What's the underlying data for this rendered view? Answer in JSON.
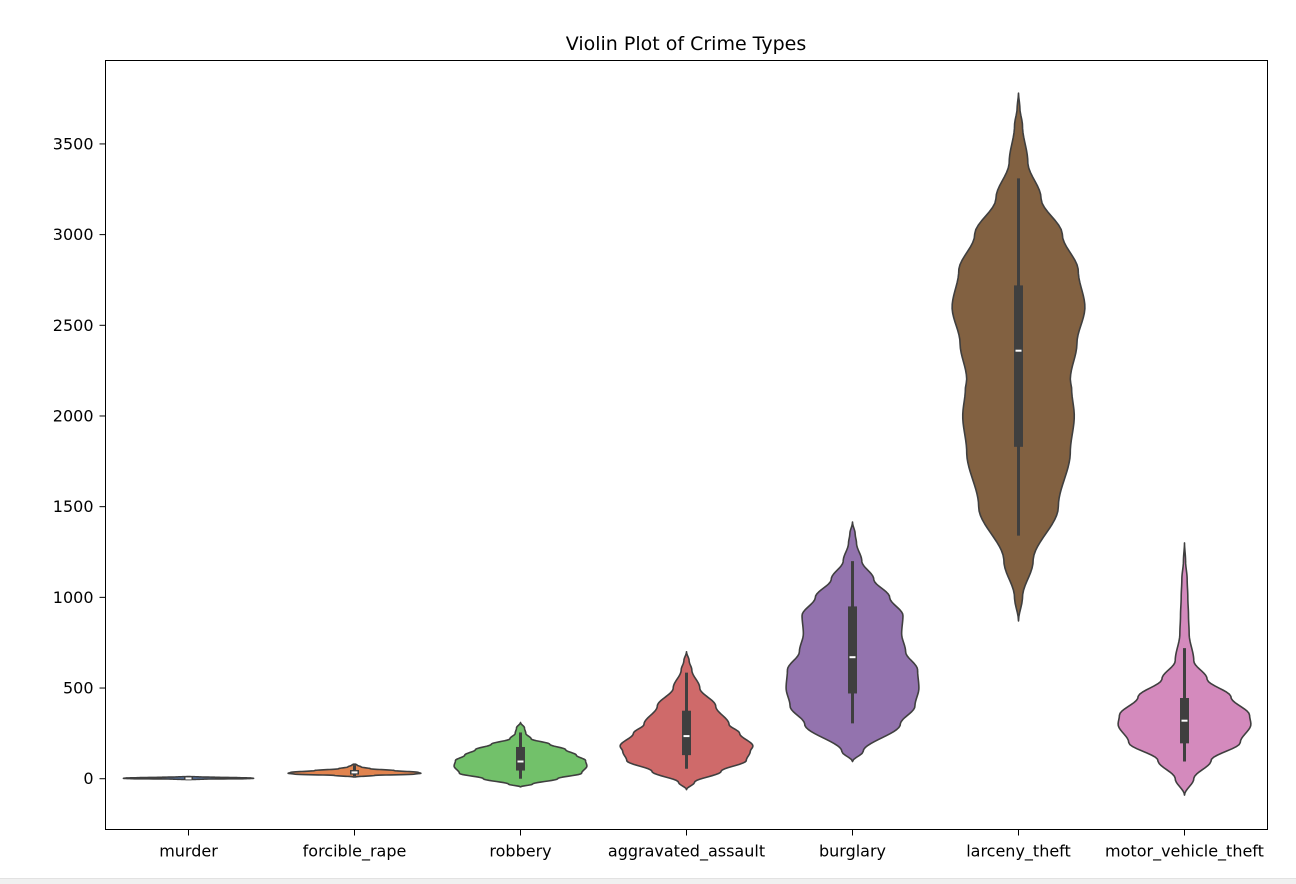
{
  "chart_data": {
    "type": "violin",
    "title": "Violin Plot of Crime Types",
    "xlabel": "",
    "ylabel": "",
    "ylim": [
      -280,
      3960
    ],
    "yticks": [
      0,
      500,
      1000,
      1500,
      2000,
      2500,
      3000,
      3500
    ],
    "grid": false,
    "categories": [
      "murder",
      "forcible_rape",
      "robbery",
      "aggravated_assault",
      "burglary",
      "larceny_theft",
      "motor_vehicle_theft"
    ],
    "violins": [
      {
        "category": "murder",
        "color": "#5a7fb7",
        "ymin": -5,
        "ymax": 12,
        "profile": [
          [
            -5,
            0.01
          ],
          [
            -2,
            0.12
          ],
          [
            0,
            0.43
          ],
          [
            2,
            0.49
          ],
          [
            4,
            0.47
          ],
          [
            6,
            0.37
          ],
          [
            8,
            0.2
          ],
          [
            10,
            0.08
          ],
          [
            12,
            0.01
          ]
        ],
        "box": {
          "whisker_low": -5,
          "q1": -3,
          "median": 1.5,
          "q3": 7,
          "whisker_high": 12
        }
      },
      {
        "category": "forcible_rape",
        "color": "#e1844f",
        "ymin": 10,
        "ymax": 80,
        "profile": [
          [
            10,
            0.01
          ],
          [
            18,
            0.15
          ],
          [
            25,
            0.45
          ],
          [
            30,
            0.5
          ],
          [
            35,
            0.48
          ],
          [
            45,
            0.3
          ],
          [
            55,
            0.12
          ],
          [
            65,
            0.05
          ],
          [
            75,
            0.02
          ],
          [
            80,
            0.01
          ]
        ],
        "box": {
          "whisker_low": 15,
          "q1": 23,
          "median": 35,
          "q3": 48,
          "whisker_high": 75
        }
      },
      {
        "category": "robbery",
        "color": "#72c16a",
        "ymin": -45,
        "ymax": 310,
        "profile": [
          [
            -45,
            0.0
          ],
          [
            -30,
            0.09
          ],
          [
            0,
            0.28
          ],
          [
            30,
            0.46
          ],
          [
            70,
            0.5
          ],
          [
            100,
            0.49
          ],
          [
            130,
            0.42
          ],
          [
            160,
            0.34
          ],
          [
            190,
            0.22
          ],
          [
            220,
            0.08
          ],
          [
            250,
            0.04
          ],
          [
            280,
            0.03
          ],
          [
            310,
            0.0
          ]
        ],
        "box": {
          "whisker_low": 0,
          "q1": 45,
          "median": 95,
          "q3": 175,
          "whisker_high": 255
        }
      },
      {
        "category": "aggravated_assault",
        "color": "#cf6a6a",
        "ymin": -60,
        "ymax": 700,
        "profile": [
          [
            -60,
            0.0
          ],
          [
            -20,
            0.06
          ],
          [
            40,
            0.26
          ],
          [
            100,
            0.45
          ],
          [
            150,
            0.48
          ],
          [
            180,
            0.5
          ],
          [
            250,
            0.4
          ],
          [
            300,
            0.32
          ],
          [
            400,
            0.22
          ],
          [
            500,
            0.1
          ],
          [
            600,
            0.04
          ],
          [
            650,
            0.02
          ],
          [
            700,
            0.0
          ]
        ],
        "box": {
          "whisker_low": 55,
          "q1": 130,
          "median": 235,
          "q3": 375,
          "whisker_high": 585
        }
      },
      {
        "category": "burglary",
        "color": "#9373ae",
        "ymin": 95,
        "ymax": 1415,
        "profile": [
          [
            95,
            0.0
          ],
          [
            150,
            0.08
          ],
          [
            300,
            0.36
          ],
          [
            400,
            0.47
          ],
          [
            500,
            0.5
          ],
          [
            600,
            0.49
          ],
          [
            700,
            0.4
          ],
          [
            800,
            0.37
          ],
          [
            900,
            0.38
          ],
          [
            1000,
            0.28
          ],
          [
            1100,
            0.16
          ],
          [
            1200,
            0.07
          ],
          [
            1300,
            0.03
          ],
          [
            1350,
            0.02
          ],
          [
            1415,
            0.0
          ]
        ],
        "box": {
          "whisker_low": 305,
          "q1": 470,
          "median": 670,
          "q3": 950,
          "whisker_high": 1200
        }
      },
      {
        "category": "larceny_theft",
        "color": "#826141",
        "ymin": 870,
        "ymax": 3780,
        "profile": [
          [
            870,
            0.0
          ],
          [
            1000,
            0.03
          ],
          [
            1200,
            0.11
          ],
          [
            1500,
            0.3
          ],
          [
            1800,
            0.39
          ],
          [
            2000,
            0.42
          ],
          [
            2150,
            0.4
          ],
          [
            2200,
            0.39
          ],
          [
            2400,
            0.44
          ],
          [
            2600,
            0.5
          ],
          [
            2800,
            0.45
          ],
          [
            3000,
            0.33
          ],
          [
            3200,
            0.17
          ],
          [
            3400,
            0.07
          ],
          [
            3600,
            0.03
          ],
          [
            3700,
            0.01
          ],
          [
            3780,
            0.0
          ]
        ],
        "box": {
          "whisker_low": 1340,
          "q1": 1830,
          "median": 2360,
          "q3": 2720,
          "whisker_high": 3310
        }
      },
      {
        "category": "motor_vehicle_theft",
        "color": "#d48abd",
        "ymin": -90,
        "ymax": 1300,
        "profile": [
          [
            -90,
            0.0
          ],
          [
            0,
            0.07
          ],
          [
            100,
            0.2
          ],
          [
            200,
            0.42
          ],
          [
            300,
            0.5
          ],
          [
            350,
            0.49
          ],
          [
            450,
            0.35
          ],
          [
            550,
            0.17
          ],
          [
            650,
            0.07
          ],
          [
            800,
            0.035
          ],
          [
            900,
            0.03
          ],
          [
            1000,
            0.025
          ],
          [
            1100,
            0.02
          ],
          [
            1200,
            0.008
          ],
          [
            1300,
            0.0
          ]
        ],
        "box": {
          "whisker_low": 95,
          "q1": 195,
          "median": 320,
          "q3": 445,
          "whisker_high": 720
        }
      }
    ]
  }
}
